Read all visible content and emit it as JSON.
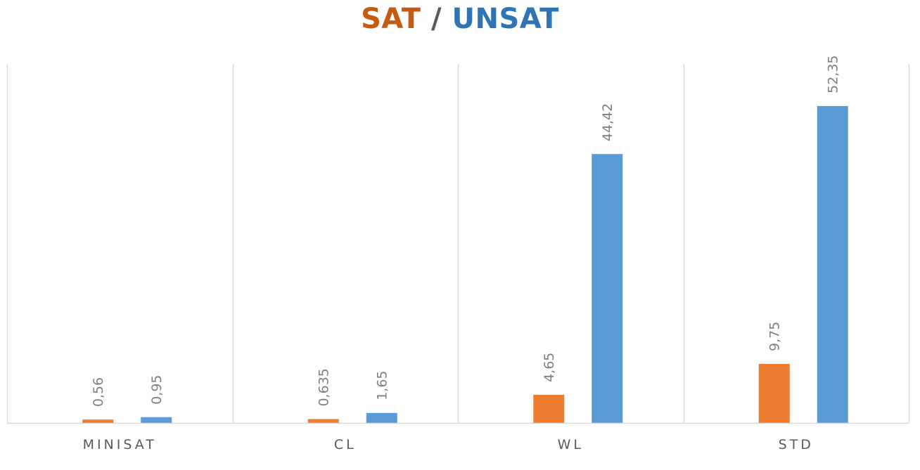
{
  "chart_data": {
    "type": "bar",
    "title_parts": [
      {
        "text": "SAT",
        "color": "#C55A11"
      },
      {
        "text": " / ",
        "color": "#595959"
      },
      {
        "text": "UNSAT",
        "color": "#2E75B6"
      }
    ],
    "categories": [
      "MINISAT",
      "CL",
      "WL",
      "STD"
    ],
    "series": [
      {
        "values": [
          0.56,
          0.635,
          4.65,
          9.75
        ],
        "labels": [
          "0,56",
          "0,635",
          "4,65",
          "9,75"
        ],
        "color": "#ED7D31"
      },
      {
        "values": [
          0.95,
          1.65,
          44.42,
          52.35
        ],
        "labels": [
          "0,95",
          "1,65",
          "44,42",
          "52,35"
        ],
        "color": "#5B9BD5"
      }
    ],
    "ylim": [
      0,
      59.3
    ],
    "grid": "vertical category separators",
    "legend": "none",
    "data_label_color": "#7F7F7F",
    "axis_color": "#D9D9D9",
    "tick_label_color": "#595959"
  }
}
